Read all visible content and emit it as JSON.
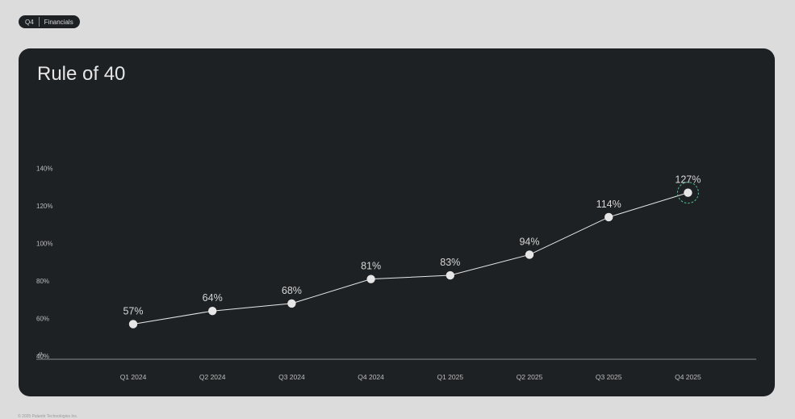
{
  "header": {
    "quarter": "Q4",
    "section": "Financials"
  },
  "card": {
    "title": "Rule of 40"
  },
  "footer": {
    "text": "© 2025 Palantir Technologies Inc."
  },
  "colors": {
    "background": "#dcdcdc",
    "card": "#1e2124",
    "line": "#e6e6e6",
    "highlight": "#4fbf8f"
  },
  "chart_data": {
    "type": "line",
    "title": "Rule of 40",
    "categories": [
      "Q1 2024",
      "Q2 2024",
      "Q3 2024",
      "Q4 2024",
      "Q1 2025",
      "Q2 2025",
      "Q3 2025",
      "Q4 2025"
    ],
    "values": [
      57,
      64,
      68,
      81,
      83,
      94,
      114,
      127
    ],
    "data_labels": [
      "57%",
      "64%",
      "68%",
      "81%",
      "83%",
      "94%",
      "114%",
      "127%"
    ],
    "y_ticks": [
      40,
      60,
      80,
      100,
      120,
      140
    ],
    "y_tick_labels": [
      "40%",
      "60%",
      "80%",
      "100%",
      "120%",
      "140%"
    ],
    "axis_break_label": "-//-",
    "highlight_index": 7,
    "grid": false
  }
}
